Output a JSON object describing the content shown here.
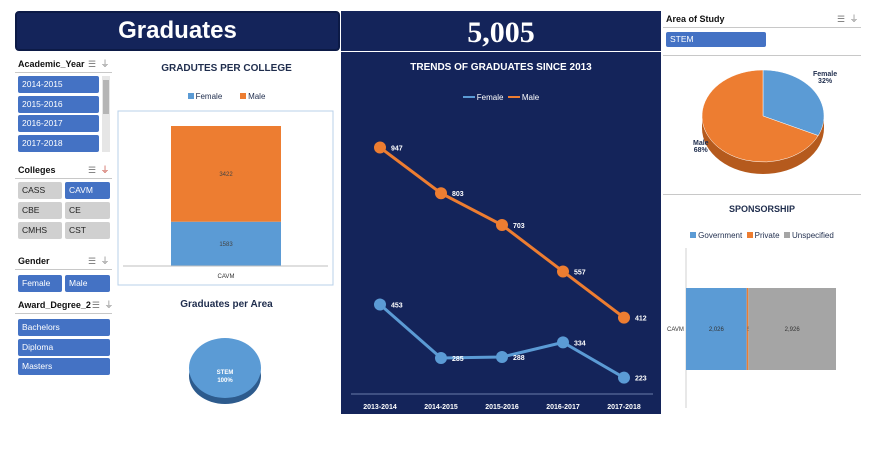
{
  "header": {
    "title": "Graduates",
    "total": "5,005"
  },
  "slicers": {
    "academic_year": {
      "title": "Academic_Year",
      "items": [
        "2014-2015",
        "2015-2016",
        "2016-2017",
        "2017-2018"
      ]
    },
    "colleges": {
      "title": "Colleges",
      "items": [
        "CASS",
        "CAVM",
        "CBE",
        "CE",
        "CMHS",
        "CST"
      ],
      "selected": "CAVM"
    },
    "gender": {
      "title": "Gender",
      "items": [
        "Female",
        "Male"
      ]
    },
    "award_degree": {
      "title": "Award_Degree_2",
      "items": [
        "Bachelors",
        "Diploma",
        "Masters"
      ]
    },
    "area_of_study": {
      "title": "Area of Study",
      "items": [
        "STEM"
      ]
    }
  },
  "colors": {
    "navy": "#14245a",
    "female": "#5b9bd5",
    "male": "#ed7d31",
    "unspecified": "#a5a5a5",
    "selected": "#4472c4"
  },
  "college_chart": {
    "title": "GRADUTES PER COLLEGE",
    "legend": [
      "Female",
      "Male"
    ],
    "chart_data": {
      "type": "bar",
      "stacked": true,
      "categories": [
        "CAVM"
      ],
      "series": [
        {
          "name": "Female",
          "values": [
            1583
          ]
        },
        {
          "name": "Male",
          "values": [
            3422
          ]
        }
      ]
    }
  },
  "area_chart": {
    "title": "Graduates per Area",
    "chart_data": {
      "type": "pie",
      "labels": [
        "STEM"
      ],
      "values": [
        100
      ]
    },
    "label": "STEM",
    "pct": "100%"
  },
  "trend_chart": {
    "title": "TRENDS OF GRADUATES SINCE 2013",
    "legend": [
      "Female",
      "Male"
    ],
    "chart_data": {
      "type": "line",
      "x": [
        "2013-2014",
        "2014-2015",
        "2015-2016",
        "2016-2017",
        "2017-2018"
      ],
      "series": [
        {
          "name": "Female",
          "values": [
            453,
            285,
            288,
            334,
            223
          ]
        },
        {
          "name": "Male",
          "values": [
            947,
            803,
            703,
            557,
            412
          ]
        }
      ]
    }
  },
  "gender_pie": {
    "chart_data": {
      "type": "pie",
      "labels": [
        "Female",
        "Male"
      ],
      "values": [
        32,
        68
      ]
    },
    "female_label": "Female",
    "female_pct": "32%",
    "male_label": "Male",
    "male_pct": "68%"
  },
  "sponsorship_chart": {
    "title": "SPONSORSHIP",
    "legend": [
      "Government",
      "Private",
      "Unspecified"
    ],
    "chart_data": {
      "type": "bar",
      "stacked": true,
      "orientation": "horizontal",
      "categories": [
        "CAVM"
      ],
      "series": [
        {
          "name": "Government",
          "values": [
            2026
          ]
        },
        {
          "name": "Private",
          "values": [
            53
          ]
        },
        {
          "name": "Unspecified",
          "values": [
            2926
          ]
        }
      ]
    },
    "labels": [
      "2,026",
      "53",
      "2,926"
    ]
  }
}
